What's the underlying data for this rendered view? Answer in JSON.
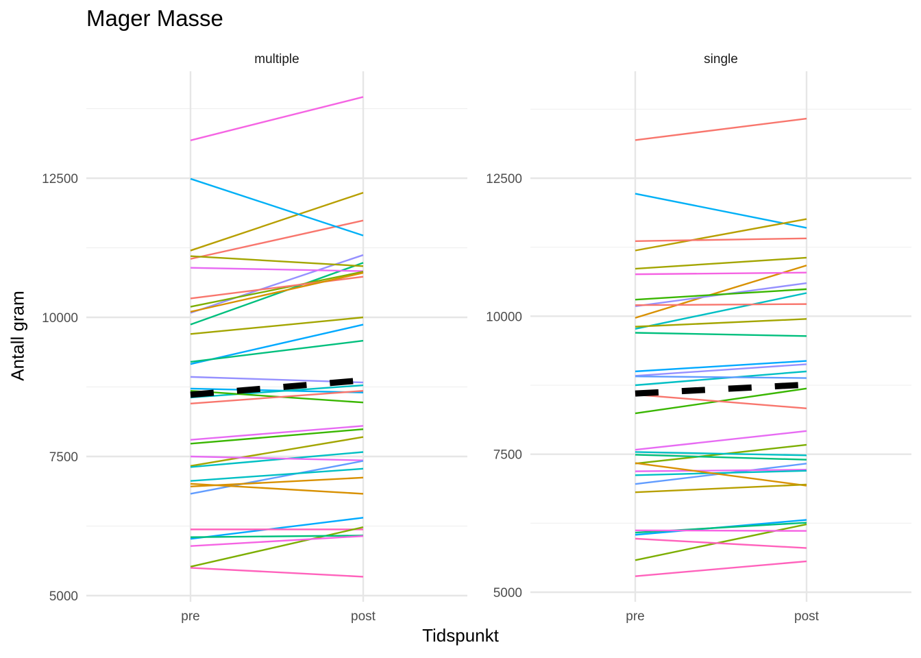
{
  "chart_data": {
    "type": "line",
    "title": "Mager Masse",
    "xlabel": "Tidspunkt",
    "ylabel": "Antall gram",
    "categories": [
      "pre",
      "post"
    ],
    "mean_line_style": "dashed black",
    "panels": [
      {
        "strip": "multiple",
        "ylim": [
          5000,
          14000
        ],
        "yticks": [
          "5000",
          "7500",
          "10000",
          "12500"
        ],
        "mean": [
          8610,
          8870
        ],
        "series": [
          {
            "color": "#F8766D",
            "values": [
              11050,
              11740
            ]
          },
          {
            "color": "#B79F00",
            "values": [
              11200,
              12240
            ]
          },
          {
            "color": "#00B0F6",
            "values": [
              12490,
              11470
            ]
          },
          {
            "color": "#F564E3",
            "values": [
              13180,
              13960
            ]
          },
          {
            "color": "#9590FF",
            "values": [
              10080,
              11120
            ]
          },
          {
            "color": "#00BF7D",
            "values": [
              9870,
              10980
            ]
          },
          {
            "color": "#A3A500",
            "values": [
              11100,
              10920
            ]
          },
          {
            "color": "#E76BF3",
            "values": [
              10890,
              10830
            ]
          },
          {
            "color": "#7CAE00",
            "values": [
              10190,
              10820
            ]
          },
          {
            "color": "#F8766D",
            "values": [
              10340,
              10730
            ]
          },
          {
            "color": "#D89000",
            "values": [
              10100,
              10800
            ]
          },
          {
            "color": "#A3A500",
            "values": [
              9700,
              10000
            ]
          },
          {
            "color": "#00A9FF",
            "values": [
              9160,
              9870
            ]
          },
          {
            "color": "#00BF7D",
            "values": [
              9200,
              9580
            ]
          },
          {
            "color": "#9590FF",
            "values": [
              8930,
              8830
            ]
          },
          {
            "color": "#00B0F6",
            "values": [
              8720,
              8650
            ]
          },
          {
            "color": "#00BFC4",
            "values": [
              8560,
              8780
            ]
          },
          {
            "color": "#39B600",
            "values": [
              8680,
              8470
            ]
          },
          {
            "color": "#F8766D",
            "values": [
              8450,
              8680
            ]
          },
          {
            "color": "#E76BF3",
            "values": [
              7800,
              8050
            ]
          },
          {
            "color": "#39B600",
            "values": [
              7730,
              7990
            ]
          },
          {
            "color": "#A3A500",
            "values": [
              7330,
              7850
            ]
          },
          {
            "color": "#00BFC4",
            "values": [
              7310,
              7580
            ]
          },
          {
            "color": "#E76BF3",
            "values": [
              7500,
              7430
            ]
          },
          {
            "color": "#619CFF",
            "values": [
              6830,
              7420
            ]
          },
          {
            "color": "#00BFC4",
            "values": [
              7060,
              7280
            ]
          },
          {
            "color": "#D89000",
            "values": [
              6960,
              7120
            ]
          },
          {
            "color": "#D89000",
            "values": [
              7010,
              6830
            ]
          },
          {
            "color": "#00A9FF",
            "values": [
              6020,
              6400
            ]
          },
          {
            "color": "#FF62BC",
            "values": [
              6190,
              6190
            ]
          },
          {
            "color": "#7CAE00",
            "values": [
              5520,
              6230
            ]
          },
          {
            "color": "#00BF7D",
            "values": [
              6050,
              6080
            ]
          },
          {
            "color": "#F564E3",
            "values": [
              5890,
              6070
            ]
          },
          {
            "color": "#FF62BC",
            "values": [
              5500,
              5340
            ]
          }
        ]
      },
      {
        "strip": "single",
        "ylim": [
          5000,
          13900
        ],
        "yticks": [
          "5000",
          "7500",
          "10000",
          "12500"
        ],
        "mean": [
          8600,
          8760
        ],
        "series": [
          {
            "color": "#F8766D",
            "values": [
              13190,
              13580
            ]
          },
          {
            "color": "#00B0F6",
            "values": [
              12220,
              11600
            ]
          },
          {
            "color": "#B79F00",
            "values": [
              11190,
              11760
            ]
          },
          {
            "color": "#F8766D",
            "values": [
              11360,
              11410
            ]
          },
          {
            "color": "#A3A500",
            "values": [
              10860,
              11060
            ]
          },
          {
            "color": "#D89000",
            "values": [
              9970,
              10920
            ]
          },
          {
            "color": "#F564E3",
            "values": [
              10760,
              10790
            ]
          },
          {
            "color": "#9590FF",
            "values": [
              10180,
              10600
            ]
          },
          {
            "color": "#39B600",
            "values": [
              10300,
              10490
            ]
          },
          {
            "color": "#00BFC4",
            "values": [
              9770,
              10420
            ]
          },
          {
            "color": "#F8766D",
            "values": [
              10200,
              10220
            ]
          },
          {
            "color": "#A3A500",
            "values": [
              9810,
              9950
            ]
          },
          {
            "color": "#00BF7D",
            "values": [
              9700,
              9640
            ]
          },
          {
            "color": "#00A9FF",
            "values": [
              9000,
              9190
            ]
          },
          {
            "color": "#9590FF",
            "values": [
              8920,
              9130
            ]
          },
          {
            "color": "#00BFC4",
            "values": [
              8750,
              9000
            ]
          },
          {
            "color": "#619CFF",
            "values": [
              8910,
              8880
            ]
          },
          {
            "color": "#39B600",
            "values": [
              8240,
              8690
            ]
          },
          {
            "color": "#F8766D",
            "values": [
              8580,
              8330
            ]
          },
          {
            "color": "#E76BF3",
            "values": [
              7580,
              7920
            ]
          },
          {
            "color": "#7CAE00",
            "values": [
              7330,
              7670
            ]
          },
          {
            "color": "#00BFC4",
            "values": [
              7540,
              7480
            ]
          },
          {
            "color": "#00BF7D",
            "values": [
              7490,
              7400
            ]
          },
          {
            "color": "#619CFF",
            "values": [
              6960,
              7330
            ]
          },
          {
            "color": "#E76BF3",
            "values": [
              7190,
              7220
            ]
          },
          {
            "color": "#00BFC4",
            "values": [
              7120,
              7200
            ]
          },
          {
            "color": "#D89000",
            "values": [
              7340,
              6930
            ]
          },
          {
            "color": "#B79F00",
            "values": [
              6810,
              6950
            ]
          },
          {
            "color": "#00A9FF",
            "values": [
              6040,
              6310
            ]
          },
          {
            "color": "#00BF7D",
            "values": [
              6080,
              6260
            ]
          },
          {
            "color": "#7CAE00",
            "values": [
              5580,
              6230
            ]
          },
          {
            "color": "#F564E3",
            "values": [
              6120,
              6110
            ]
          },
          {
            "color": "#FF62BC",
            "values": [
              5970,
              5800
            ]
          },
          {
            "color": "#FF62BC",
            "values": [
              5290,
              5560
            ]
          }
        ]
      }
    ]
  }
}
